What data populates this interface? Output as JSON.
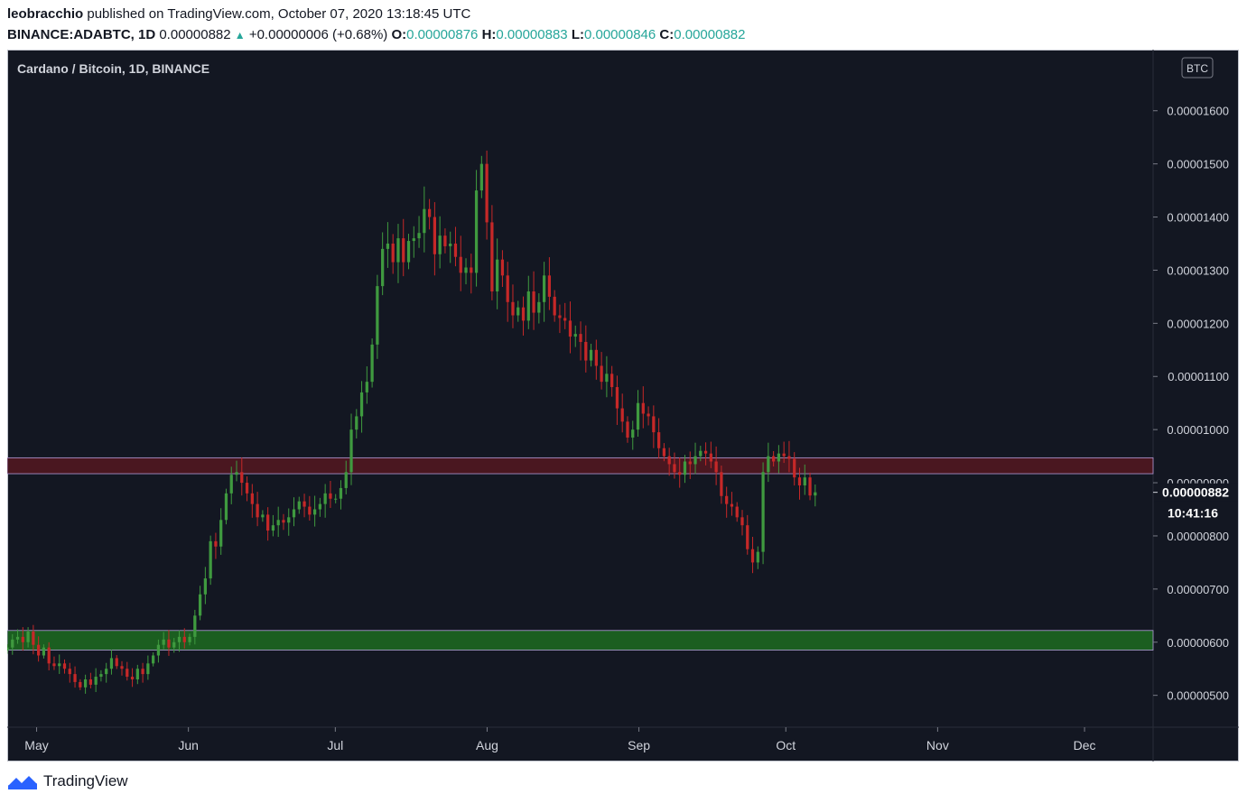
{
  "header": {
    "author": "leobracchio",
    "published_text": "published on TradingView.com, October 07, 2020 13:18:45 UTC",
    "symbol_line": "BINANCE:ADABTC, 1D",
    "last_price": "0.00000882",
    "change": "+0.00000006 (+0.68%)",
    "o_label": "O:",
    "o_value": "0.00000876",
    "h_label": "H:",
    "h_value": "0.00000883",
    "l_label": "L:",
    "l_value": "0.00000846",
    "c_label": "C:",
    "c_value": "0.00000882"
  },
  "footer": {
    "brand": "TradingView"
  },
  "colors": {
    "background": "#131722",
    "up": "#26a69a",
    "up_candle": "#3f9a3f",
    "down_candle": "#c62828",
    "resistance_zone": "#4a1720",
    "support_zone": "#1b5e20",
    "zone_border": "#b39ddb"
  },
  "chart_data": {
    "type": "candlestick",
    "title": "Cardano / Bitcoin, 1D, BINANCE",
    "currency_badge": "BTC",
    "y_unit": "BTC",
    "ylim": [
      4.4e-06,
      1.715e-05
    ],
    "y_ticks": [
      "0.00001600",
      "0.00001500",
      "0.00001400",
      "0.00001300",
      "0.00001200",
      "0.00001100",
      "0.00001000",
      "0.00000900",
      "0.00000800",
      "0.00000700",
      "0.00000600",
      "0.00000500"
    ],
    "y_tick_values": [
      1.6e-05,
      1.5e-05,
      1.4e-05,
      1.3e-05,
      1.2e-05,
      1.1e-05,
      1e-05,
      9e-06,
      8e-06,
      7e-06,
      6e-06,
      5e-06
    ],
    "x_ticks": [
      "May",
      "Jun",
      "Jul",
      "Aug",
      "Sep",
      "Oct",
      "Nov",
      "Dec"
    ],
    "x_tick_dates": [
      "2020-05-01",
      "2020-06-01",
      "2020-07-01",
      "2020-08-01",
      "2020-09-01",
      "2020-10-01",
      "2020-11-01",
      "2020-12-01"
    ],
    "x_range": [
      "2020-04-25",
      "2020-12-15"
    ],
    "current_price_label": "0.00000882",
    "current_price_value": 8.82e-06,
    "countdown_label": "10:41:16",
    "zones": [
      {
        "name": "resistance",
        "low": 9.17e-06,
        "high": 9.47e-06
      },
      {
        "name": "support",
        "low": 5.85e-06,
        "high": 6.22e-06
      }
    ],
    "candle_dates": {
      "start": "2020-04-25",
      "end": "2020-10-07"
    },
    "series": [
      {
        "values": [
          5.9,
          6.05,
          6.1,
          6.0,
          6.2,
          5.95,
          5.75,
          5.9,
          5.6,
          5.55,
          5.6,
          5.5,
          5.4,
          5.25,
          5.15,
          5.3,
          5.2,
          5.35,
          5.4,
          5.5,
          5.7,
          5.55,
          5.5,
          5.35,
          5.3,
          5.5,
          5.4,
          5.6,
          5.75,
          5.95,
          6.05,
          5.9,
          6.0,
          6.1,
          6.0,
          6.1,
          6.5,
          6.9,
          7.2,
          7.9,
          7.8,
          8.3,
          8.8,
          9.15,
          9.2,
          9.0,
          8.8,
          8.6,
          8.35,
          8.4,
          8.1,
          8.2,
          8.3,
          8.25,
          8.35,
          8.5,
          8.65,
          8.55,
          8.4,
          8.5,
          8.6,
          8.8,
          8.7,
          8.7,
          8.9,
          9.2,
          10.0,
          10.25,
          10.7,
          10.9,
          11.6,
          12.7,
          13.4,
          13.5,
          13.15,
          13.6,
          13.15,
          13.55,
          13.6,
          13.7,
          14.15,
          14.0,
          13.3,
          13.65,
          13.45,
          13.5,
          13.25,
          12.95,
          13.05,
          12.95,
          14.5,
          15.0,
          13.9,
          12.6,
          13.2,
          12.9,
          12.4,
          12.15,
          12.3,
          12.05,
          12.6,
          12.2,
          12.4,
          12.9,
          12.5,
          12.15,
          12.1,
          12.05,
          11.75,
          11.8,
          11.65,
          11.3,
          11.5,
          11.2,
          10.9,
          11.05,
          10.8,
          10.4,
          10.15,
          9.85,
          10.0,
          10.5,
          10.3,
          10.25,
          9.95,
          9.65,
          9.5,
          9.35,
          9.2,
          9.15,
          9.4,
          9.35,
          9.5,
          9.6,
          9.55,
          9.4,
          9.2,
          8.75,
          8.6,
          8.55,
          8.35,
          8.2,
          7.75,
          7.5,
          7.7,
          9.2,
          9.5,
          9.4,
          9.55,
          9.5,
          9.45,
          9.1,
          8.95,
          9.1,
          8.76,
          8.82
        ]
      },
      {
        "name": "support_zone_label",
        "values": []
      }
    ]
  }
}
